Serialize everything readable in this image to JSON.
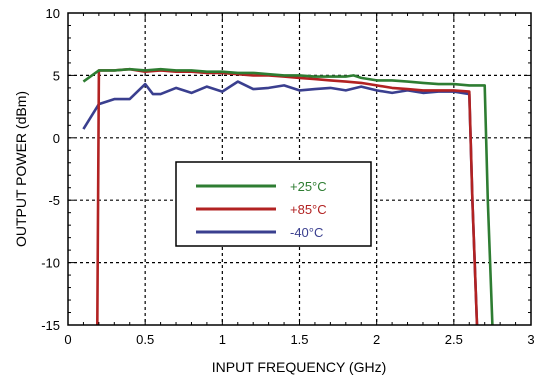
{
  "chart_data": {
    "type": "line",
    "xlabel": "INPUT FREQUENCY (GHz)",
    "ylabel": "OUTPUT POWER (dBm)",
    "xlim": [
      0,
      3
    ],
    "ylim": [
      -15,
      10
    ],
    "xticks": [
      0,
      0.5,
      1,
      1.5,
      2,
      2.5,
      3
    ],
    "yticks": [
      -15,
      -10,
      -5,
      0,
      5,
      10
    ],
    "xtick_labels": [
      "0",
      "0.5",
      "1",
      "1.5",
      "2",
      "2.5",
      "3"
    ],
    "ytick_labels": [
      "-15",
      "-10",
      "-5",
      "0",
      "5",
      "10"
    ],
    "grid": "dotted",
    "legend_position": "center-left",
    "series": [
      {
        "name": "+25°C",
        "color": "#2e7d32",
        "x": [
          0.1,
          0.2,
          0.3,
          0.4,
          0.5,
          0.6,
          0.7,
          0.8,
          0.9,
          1.0,
          1.1,
          1.2,
          1.3,
          1.4,
          1.5,
          1.6,
          1.7,
          1.8,
          1.85,
          1.9,
          2.0,
          2.1,
          2.2,
          2.3,
          2.4,
          2.5,
          2.6,
          2.7,
          2.72,
          2.75
        ],
        "y": [
          4.5,
          5.4,
          5.4,
          5.5,
          5.4,
          5.5,
          5.4,
          5.4,
          5.3,
          5.3,
          5.2,
          5.2,
          5.1,
          5.0,
          5.0,
          4.9,
          4.9,
          4.9,
          5.0,
          4.8,
          4.6,
          4.6,
          4.5,
          4.4,
          4.3,
          4.3,
          4.2,
          4.2,
          -5.0,
          -15.0
        ]
      },
      {
        "name": "+85°C",
        "color": "#b22222",
        "x": [
          0.19,
          0.2,
          0.3,
          0.4,
          0.5,
          0.6,
          0.7,
          0.8,
          0.9,
          1.0,
          1.1,
          1.2,
          1.3,
          1.4,
          1.5,
          1.6,
          1.7,
          1.8,
          1.9,
          2.0,
          2.1,
          2.2,
          2.3,
          2.4,
          2.5,
          2.6,
          2.62,
          2.65
        ],
        "y": [
          -15.0,
          5.4,
          5.4,
          5.5,
          5.3,
          5.4,
          5.3,
          5.3,
          5.2,
          5.2,
          5.1,
          5.0,
          5.0,
          4.9,
          4.8,
          4.7,
          4.6,
          4.5,
          4.4,
          4.2,
          4.0,
          3.9,
          3.8,
          3.8,
          3.8,
          3.7,
          -5.0,
          -15.0
        ]
      },
      {
        "name": "-40°C",
        "color": "#3a3f8f",
        "x": [
          0.1,
          0.2,
          0.3,
          0.4,
          0.5,
          0.55,
          0.6,
          0.7,
          0.8,
          0.9,
          1.0,
          1.1,
          1.2,
          1.3,
          1.4,
          1.5,
          1.6,
          1.7,
          1.8,
          1.9,
          2.0,
          2.1,
          2.2,
          2.3,
          2.4,
          2.5,
          2.6,
          2.62,
          2.65
        ],
        "y": [
          0.7,
          2.7,
          3.1,
          3.1,
          4.3,
          3.5,
          3.5,
          4.0,
          3.6,
          4.1,
          3.7,
          4.5,
          3.9,
          4.0,
          4.2,
          3.8,
          3.9,
          4.0,
          3.8,
          4.1,
          3.8,
          3.6,
          3.8,
          3.6,
          3.7,
          3.7,
          3.5,
          -5.0,
          -15.0
        ]
      }
    ]
  }
}
